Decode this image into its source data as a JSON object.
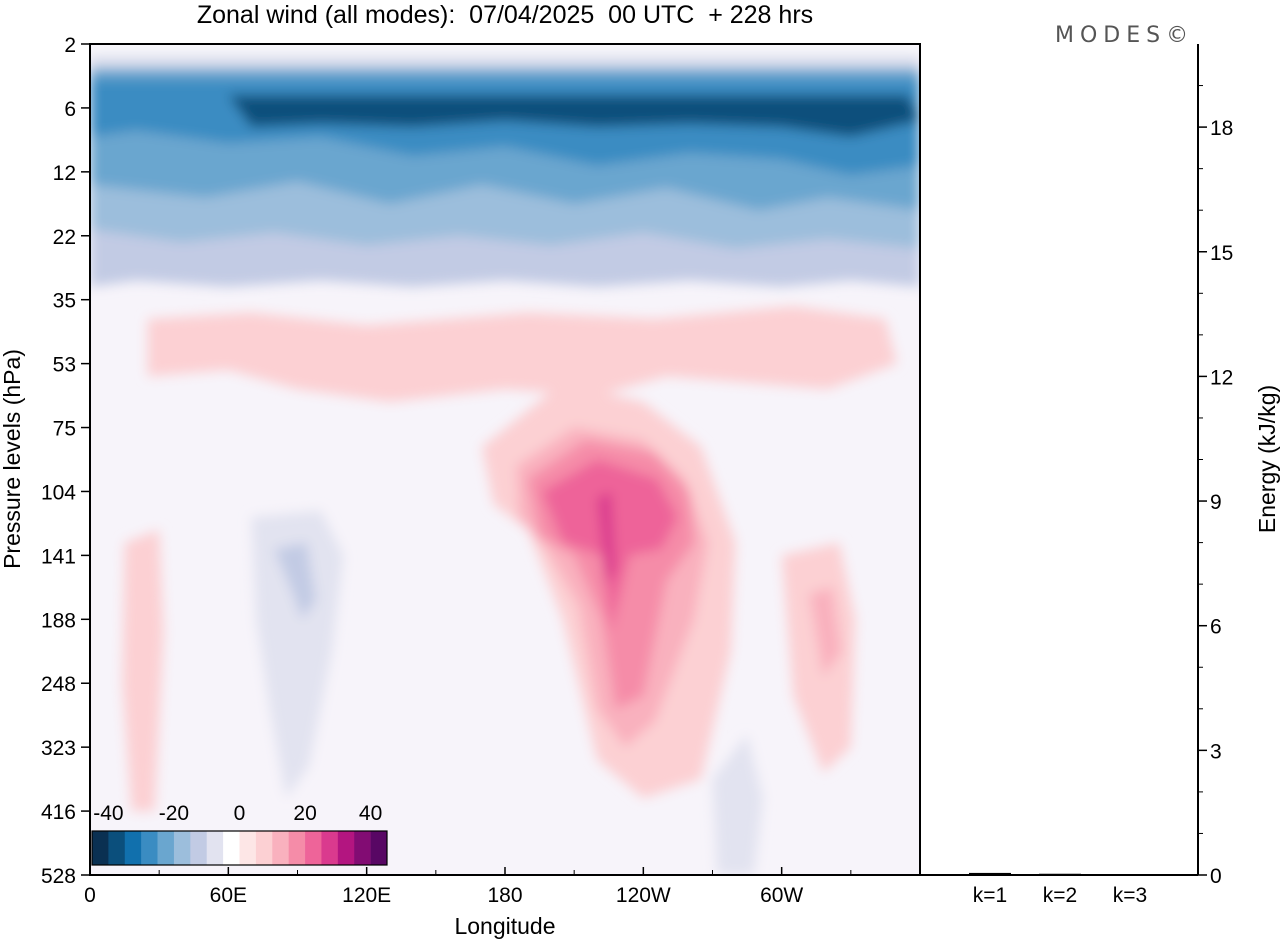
{
  "chart_data": [
    {
      "type": "heatmap",
      "title": "Zonal wind (all modes):  07/04/2025  00 UTC  + 228 hrs",
      "xlabel": "Longitude",
      "ylabel": "Pressure levels (hPa)",
      "x_ticks": [
        "0",
        "60E",
        "120E",
        "180",
        "120W",
        "60W"
      ],
      "x_range_deg_east": [
        0,
        360
      ],
      "y_ticks": [
        "2",
        "6",
        "12",
        "22",
        "35",
        "53",
        "75",
        "104",
        "141",
        "188",
        "248",
        "323",
        "416",
        "528"
      ],
      "y_scale": "level index (log-pressure)",
      "colorbar": {
        "ticks": [
          "-40",
          "-20",
          "0",
          "20",
          "40"
        ],
        "range": [
          -45,
          45
        ],
        "step": 5,
        "colors": [
          "#0a3052",
          "#0b4f7c",
          "#1170ad",
          "#3a8cc2",
          "#6aa6cf",
          "#9cbedc",
          "#c2cbe4",
          "#e2e3f0",
          "#ffffff",
          "#fde6e6",
          "#fcd0d3",
          "#f9b1be",
          "#f58ca8",
          "#ee6499",
          "#da3a8e",
          "#b31580",
          "#820c73",
          "#580764"
        ]
      },
      "features": [
        {
          "name": "upper easterlies",
          "lev": [
            0,
            3.8
          ],
          "value_min": -40
        },
        {
          "name": "upper westerly belt",
          "lev": [
            3.9,
            6
          ],
          "value": 10
        },
        {
          "name": "westerly jet core",
          "lon": [
            170,
            295
          ],
          "lev": [
            5.6,
            11.7
          ],
          "value_max": 35
        },
        {
          "name": "easterly pocket",
          "lon": [
            70,
            95
          ],
          "lev": [
            7.5,
            11.7
          ],
          "value": -10
        }
      ]
    },
    {
      "type": "bar",
      "categories": [
        "k=1",
        "k=2",
        "k=3"
      ],
      "values": [
        0.05,
        0.03,
        0.02
      ],
      "ylabel": "Energy (kJ/kg)",
      "y_ticks": [
        "0",
        "3",
        "6",
        "9",
        "12",
        "15",
        "18"
      ],
      "ylim": [
        0,
        20
      ]
    }
  ],
  "branding": "MODES©"
}
